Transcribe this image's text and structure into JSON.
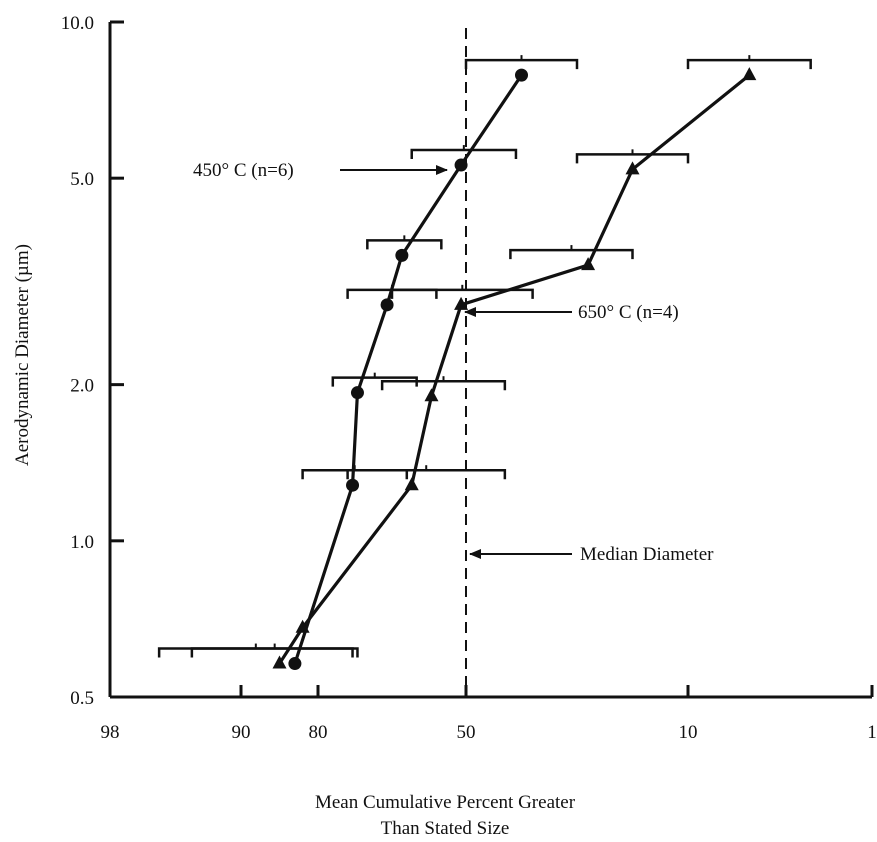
{
  "chart_data": {
    "type": "scatter",
    "xlabel": "Mean Cumulative Percent Greater Than Stated Size",
    "xlabel_lines": [
      "Mean Cumulative Percent Greater",
      "Than Stated Size"
    ],
    "ylabel": "Aerodynamic Diameter (µm)",
    "x_scale": "probability (reversed)",
    "y_scale": "log",
    "xlim": [
      98,
      1
    ],
    "ylim": [
      0.5,
      10.0
    ],
    "x_ticks": [
      {
        "value": 98,
        "label": "98"
      },
      {
        "value": 90,
        "label": "90"
      },
      {
        "value": 80,
        "label": "80"
      },
      {
        "value": 50,
        "label": "50"
      },
      {
        "value": 10,
        "label": "10"
      },
      {
        "value": 1,
        "label": "1"
      }
    ],
    "y_ticks": [
      {
        "value": 0.5,
        "label": "0.5"
      },
      {
        "value": 1.0,
        "label": "1.0"
      },
      {
        "value": 2.0,
        "label": "2.0"
      },
      {
        "value": 5.0,
        "label": "5.0"
      },
      {
        "value": 10.0,
        "label": "10.0"
      }
    ],
    "grid": false,
    "median_line": {
      "x": 50,
      "label": "Median Diameter"
    },
    "series": [
      {
        "name": "450° C (n=6)",
        "marker": "circle",
        "points": [
          {
            "x": 83,
            "y": 0.58,
            "err": [
              93,
              72
            ]
          },
          {
            "x": 73,
            "y": 1.28,
            "err": [
              82,
              62
            ]
          },
          {
            "x": 72,
            "y": 1.93,
            "err": [
              77,
              60
            ]
          },
          {
            "x": 66,
            "y": 2.85,
            "err": [
              74,
              56
            ]
          },
          {
            "x": 63,
            "y": 3.55,
            "err": [
              70,
              55
            ]
          },
          {
            "x": 51,
            "y": 5.3,
            "err": [
              61,
              41
            ]
          },
          {
            "x": 40,
            "y": 7.9,
            "err": [
              50,
              30
            ]
          }
        ]
      },
      {
        "name": "650° C (n=4)",
        "marker": "triangle",
        "points": [
          {
            "x": 85,
            "y": 0.58,
            "err": [
              95,
              73
            ]
          },
          {
            "x": 82,
            "y": 0.68
          },
          {
            "x": 61,
            "y": 1.28,
            "err": [
              74,
              43
            ]
          },
          {
            "x": 57,
            "y": 1.9,
            "err": [
              67,
              43
            ]
          },
          {
            "x": 51,
            "y": 2.85,
            "err": [
              65,
              38
            ]
          },
          {
            "x": 28,
            "y": 3.4,
            "err": [
              42,
              20
            ]
          },
          {
            "x": 20,
            "y": 5.2,
            "err": [
              30,
              10
            ]
          },
          {
            "x": 7,
            "y": 7.9,
            "err": [
              10,
              4
            ]
          }
        ]
      }
    ],
    "annotations": [
      "450° C (n=6)",
      "650° C (n=4)",
      "Median Diameter"
    ],
    "colors": {
      "ink": "#111111",
      "background": "#ffffff"
    }
  }
}
